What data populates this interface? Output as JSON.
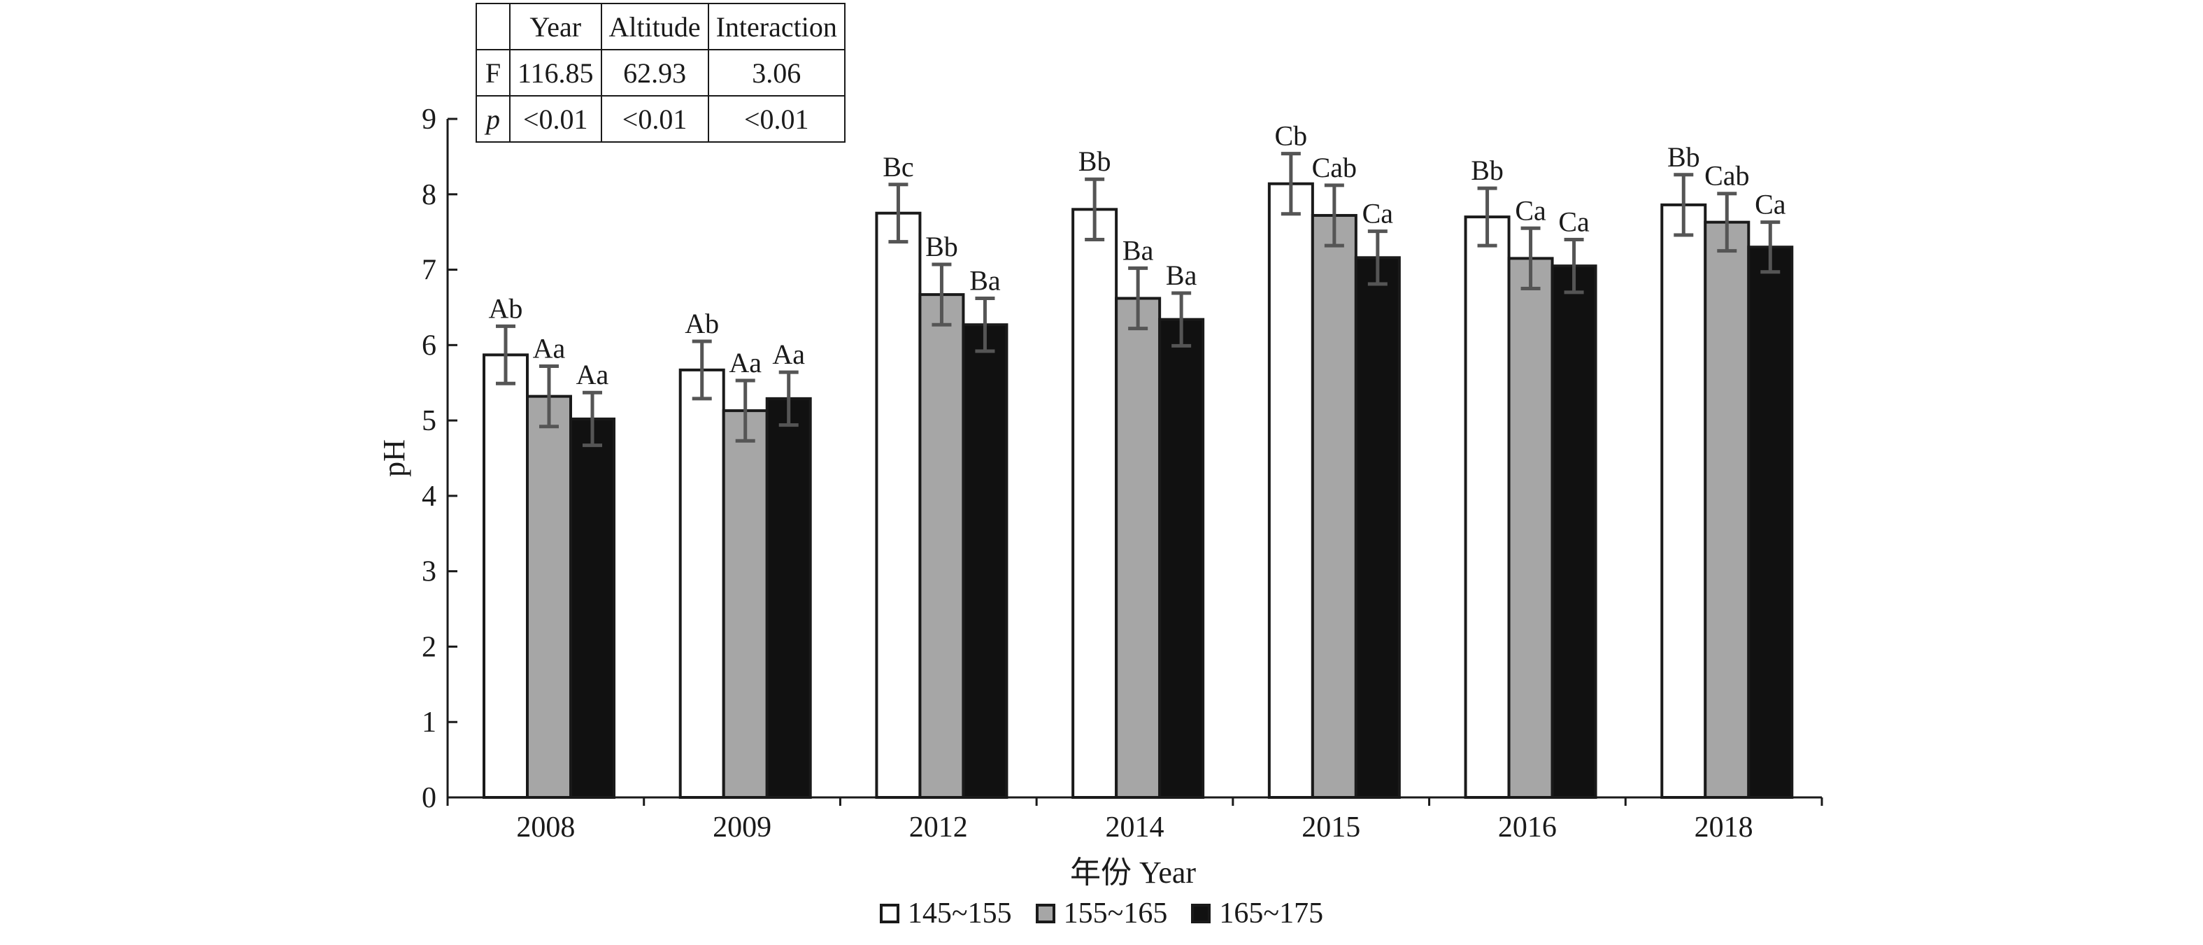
{
  "chart_data": {
    "type": "bar",
    "ylabel": "pH",
    "xlabel": "年份 Year",
    "ylim": [
      0,
      9
    ],
    "yticks": [
      0,
      1,
      2,
      3,
      4,
      5,
      6,
      7,
      8,
      9
    ],
    "grid": false,
    "legend_position": "bottom-center",
    "categories": [
      "2008",
      "2009",
      "2012",
      "2014",
      "2015",
      "2016",
      "2018"
    ],
    "series": [
      {
        "name": "145~155",
        "color": "#ffffff",
        "values": [
          5.87,
          5.67,
          7.75,
          7.8,
          8.14,
          7.7,
          7.86
        ],
        "errors": [
          0.38,
          0.38,
          0.38,
          0.4,
          0.4,
          0.38,
          0.4
        ],
        "labels": [
          "Ab",
          "Ab",
          "Bc",
          "Bb",
          "Cb",
          "Bb",
          "Bb"
        ]
      },
      {
        "name": "155~165",
        "color": "#a6a6a6",
        "values": [
          5.32,
          5.13,
          6.67,
          6.62,
          7.72,
          7.15,
          7.63
        ],
        "errors": [
          0.4,
          0.4,
          0.4,
          0.4,
          0.4,
          0.4,
          0.38
        ],
        "labels": [
          "Aa",
          "Aa",
          "Bb",
          "Ba",
          "Cab",
          "Ca",
          "Cab"
        ]
      },
      {
        "name": "165~175",
        "color": "#111111",
        "values": [
          5.02,
          5.29,
          6.27,
          6.34,
          7.16,
          7.05,
          7.3
        ],
        "errors": [
          0.35,
          0.35,
          0.35,
          0.35,
          0.35,
          0.35,
          0.33
        ],
        "labels": [
          "Aa",
          "Aa",
          "Ba",
          "Ba",
          "Ca",
          "Ca",
          "Ca"
        ]
      }
    ],
    "stats_table": {
      "headers": [
        "",
        "Year",
        "Altitude",
        "Interaction"
      ],
      "rows": [
        {
          "label": "F",
          "values": [
            "116.85",
            "62.93",
            "3.06"
          ]
        },
        {
          "label": "p",
          "values": [
            "<0.01",
            "<0.01",
            "<0.01"
          ]
        }
      ]
    }
  }
}
